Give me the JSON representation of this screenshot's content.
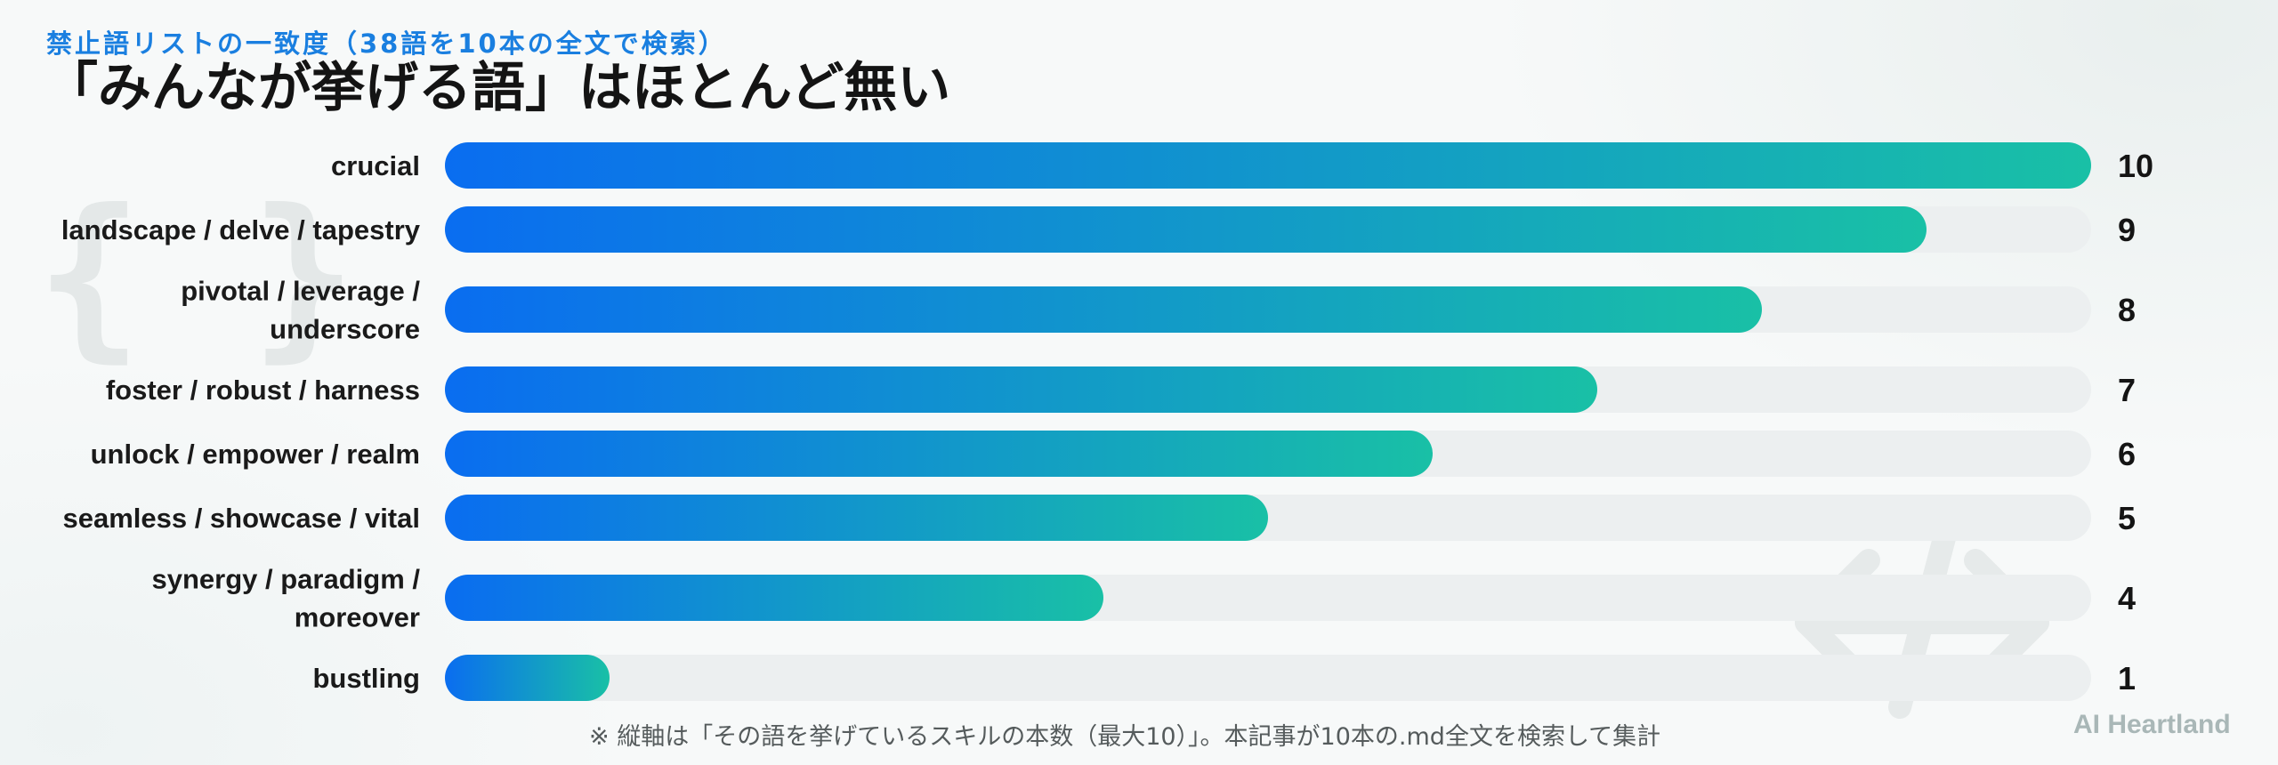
{
  "header": {
    "kicker": "禁止語リストの一致度（38語を10本の全文で検索）",
    "title": "「みんなが挙げる語」はほとんど無い"
  },
  "footer": {
    "note": "※ 縦軸は「その語を挙げているスキルの本数（最大10）」。本記事が10本の.md全文を検索して集計",
    "brand": "AI Heartland"
  },
  "decor": {
    "braces_icon": "{ }",
    "arrows_icon": "double-arrow-icon"
  },
  "colors": {
    "bar_start": "#0a6df0",
    "bar_end": "#19c0a6",
    "track": "#eceff0",
    "kicker": "#1a7fe0"
  },
  "chart_data": {
    "type": "bar",
    "orientation": "horizontal",
    "categories": [
      [
        "crucial"
      ],
      [
        "landscape / delve / tapestry"
      ],
      [
        "pivotal / leverage /",
        "underscore"
      ],
      [
        "foster / robust / harness"
      ],
      [
        "unlock / empower / realm"
      ],
      [
        "seamless / showcase / vital"
      ],
      [
        "synergy / paradigm /",
        "moreover"
      ],
      [
        "bustling"
      ]
    ],
    "values": [
      10,
      9,
      8,
      7,
      6,
      5,
      4,
      1
    ],
    "xlim": [
      0,
      10
    ],
    "grid": false,
    "legend": "none"
  }
}
